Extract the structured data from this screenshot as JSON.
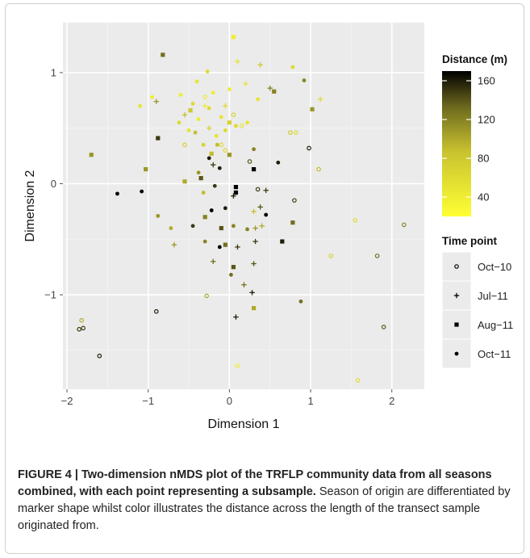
{
  "chart_data": {
    "type": "scatter",
    "xlabel": "Dimension 1",
    "ylabel": "Dimension 2",
    "xlim": [
      -2.05,
      2.4
    ],
    "ylim": [
      -1.85,
      1.45
    ],
    "xticks": [
      -2,
      -1,
      0,
      1,
      2
    ],
    "yticks": [
      -1,
      0,
      1
    ],
    "xtick_labels": [
      "-2",
      "-1",
      "0",
      "1",
      "2"
    ],
    "ytick_labels": [
      "-1",
      "0",
      "1"
    ],
    "grid": true,
    "color_legend": {
      "title": "Distance (m)",
      "min": 20,
      "max": 170,
      "low_color": "#ffff33",
      "high_color": "#000000",
      "ticks": [
        160,
        120,
        80,
        40
      ],
      "tick_labels": [
        "160",
        "120",
        "80",
        "40"
      ]
    },
    "shape_legend": {
      "title": "Time point",
      "entries": [
        {
          "label": "Oct−10",
          "shape": "open-circle"
        },
        {
          "label": "Jul−11",
          "shape": "plus"
        },
        {
          "label": "Aug−11",
          "shape": "square"
        },
        {
          "label": "Oct−11",
          "shape": "dot"
        }
      ]
    },
    "series": [
      {
        "name": "Oct−10",
        "shape": "open-circle",
        "points": [
          [
            -0.55,
            0.35,
            70
          ],
          [
            -0.3,
            0.78,
            40
          ],
          [
            -0.1,
            0.35,
            60
          ],
          [
            0.15,
            0.52,
            50
          ],
          [
            0.25,
            0.2,
            140
          ],
          [
            0.35,
            -0.05,
            150
          ],
          [
            0.8,
            -0.15,
            150
          ],
          [
            0.98,
            0.32,
            160
          ],
          [
            0.75,
            0.46,
            80
          ],
          [
            0.82,
            0.46,
            60
          ],
          [
            1.1,
            0.13,
            90
          ],
          [
            1.55,
            -0.33,
            60
          ],
          [
            1.25,
            -0.65,
            70
          ],
          [
            1.82,
            -0.65,
            130
          ],
          [
            2.15,
            -0.37,
            120
          ],
          [
            1.9,
            -1.29,
            140
          ],
          [
            1.58,
            -1.77,
            60
          ],
          [
            0.1,
            -1.64,
            40
          ],
          [
            -0.28,
            -1.01,
            100
          ],
          [
            -0.9,
            -1.15,
            160
          ],
          [
            -1.82,
            -1.23,
            100
          ],
          [
            -1.85,
            -1.31,
            150
          ],
          [
            -1.8,
            -1.3,
            150
          ],
          [
            -1.6,
            -1.55,
            160
          ],
          [
            0.05,
            0.62,
            70
          ],
          [
            -0.05,
            0.3,
            60
          ]
        ]
      },
      {
        "name": "Jul−11",
        "shape": "plus",
        "points": [
          [
            -0.9,
            0.74,
            110
          ],
          [
            -0.55,
            0.62,
            90
          ],
          [
            0.1,
            1.1,
            50
          ],
          [
            0.38,
            1.07,
            80
          ],
          [
            0.5,
            0.86,
            120
          ],
          [
            0.2,
            0.9,
            50
          ],
          [
            -0.3,
            0.7,
            40
          ],
          [
            -0.25,
            0.5,
            70
          ],
          [
            -0.05,
            0.7,
            60
          ],
          [
            1.12,
            0.76,
            60
          ],
          [
            0.05,
            -0.11,
            160
          ],
          [
            0.45,
            -0.06,
            150
          ],
          [
            0.38,
            -0.21,
            140
          ],
          [
            0.3,
            -0.25,
            90
          ],
          [
            0.4,
            -0.38,
            100
          ],
          [
            0.32,
            -0.4,
            110
          ],
          [
            0.32,
            -0.52,
            150
          ],
          [
            0.1,
            -0.57,
            150
          ],
          [
            0.18,
            -0.91,
            130
          ],
          [
            0.28,
            -0.98,
            160
          ],
          [
            0.08,
            -1.2,
            160
          ],
          [
            -0.2,
            -0.7,
            130
          ],
          [
            -0.68,
            -0.55,
            110
          ],
          [
            -0.2,
            0.17,
            150
          ],
          [
            0.3,
            -0.72,
            140
          ]
        ]
      },
      {
        "name": "Aug−11",
        "shape": "square",
        "points": [
          [
            -0.82,
            1.16,
            130
          ],
          [
            0.05,
            1.32,
            40
          ],
          [
            0.55,
            0.83,
            120
          ],
          [
            1.02,
            0.67,
            110
          ],
          [
            -1.03,
            0.13,
            110
          ],
          [
            -1.7,
            0.26,
            110
          ],
          [
            -0.88,
            0.41,
            150
          ],
          [
            -0.35,
            0.05,
            140
          ],
          [
            -0.55,
            0.02,
            100
          ],
          [
            0.0,
            0.55,
            70
          ],
          [
            0.3,
            0.13,
            170
          ],
          [
            0.08,
            -0.03,
            170
          ],
          [
            0.08,
            -0.08,
            170
          ],
          [
            -0.3,
            -0.3,
            120
          ],
          [
            -0.1,
            -0.4,
            140
          ],
          [
            -0.05,
            -0.55,
            130
          ],
          [
            0.05,
            -0.75,
            140
          ],
          [
            0.65,
            -0.52,
            160
          ],
          [
            0.78,
            -0.35,
            130
          ],
          [
            0.3,
            -1.12,
            100
          ],
          [
            0.0,
            0.26,
            110
          ],
          [
            -0.48,
            0.66,
            80
          ],
          [
            -0.22,
            0.27,
            90
          ]
        ]
      },
      {
        "name": "Oct−11",
        "shape": "dot",
        "points": [
          [
            -1.38,
            -0.09,
            170
          ],
          [
            -1.08,
            -0.07,
            170
          ],
          [
            -0.88,
            -0.29,
            110
          ],
          [
            -0.72,
            -0.4,
            100
          ],
          [
            -0.45,
            -0.38,
            150
          ],
          [
            -0.3,
            -0.52,
            120
          ],
          [
            -0.22,
            -0.24,
            170
          ],
          [
            -0.18,
            -0.02,
            150
          ],
          [
            -0.12,
            -0.57,
            170
          ],
          [
            -0.05,
            -0.22,
            160
          ],
          [
            0.22,
            -0.41,
            120
          ],
          [
            0.45,
            -0.28,
            170
          ],
          [
            0.6,
            0.19,
            160
          ],
          [
            0.3,
            0.31,
            120
          ],
          [
            0.05,
            -0.38,
            120
          ],
          [
            0.02,
            -0.82,
            130
          ],
          [
            0.88,
            -1.06,
            130
          ],
          [
            0.92,
            0.93,
            120
          ],
          [
            -0.25,
            0.23,
            160
          ],
          [
            -0.38,
            0.1,
            110
          ],
          [
            -0.42,
            0.46,
            90
          ],
          [
            -0.12,
            0.14,
            160
          ]
        ]
      },
      {
        "name": "Oct−11",
        "shape": "dot",
        "points": [
          [
            -1.1,
            0.7,
            50
          ],
          [
            -0.95,
            0.78,
            40
          ],
          [
            -0.6,
            0.8,
            40
          ],
          [
            -0.45,
            0.72,
            60
          ],
          [
            -0.4,
            0.92,
            50
          ],
          [
            -0.27,
            1.01,
            60
          ],
          [
            -0.2,
            0.82,
            40
          ],
          [
            -0.1,
            0.6,
            50
          ],
          [
            0.0,
            0.85,
            40
          ],
          [
            0.08,
            0.52,
            60
          ],
          [
            0.35,
            0.76,
            50
          ],
          [
            0.78,
            1.05,
            60
          ],
          [
            -0.62,
            0.55,
            60
          ],
          [
            -0.5,
            0.48,
            50
          ],
          [
            -0.38,
            0.58,
            40
          ],
          [
            -0.32,
            0.35,
            70
          ],
          [
            -0.16,
            0.43,
            50
          ],
          [
            -0.05,
            0.48,
            60
          ],
          [
            0.22,
            0.55,
            50
          ],
          [
            -0.25,
            0.68,
            60
          ],
          [
            -0.32,
            -0.08,
            90
          ],
          [
            -0.15,
            0.35,
            90
          ]
        ]
      }
    ]
  },
  "caption": {
    "bold": "FIGURE 4 | Two-dimension nMDS plot of the TRFLP community data from all seasons combined, with each point representing a subsample.",
    "text": " Season of origin are differentiated by marker shape whilst color illustrates the distance across the length of the transect sample originated from."
  }
}
